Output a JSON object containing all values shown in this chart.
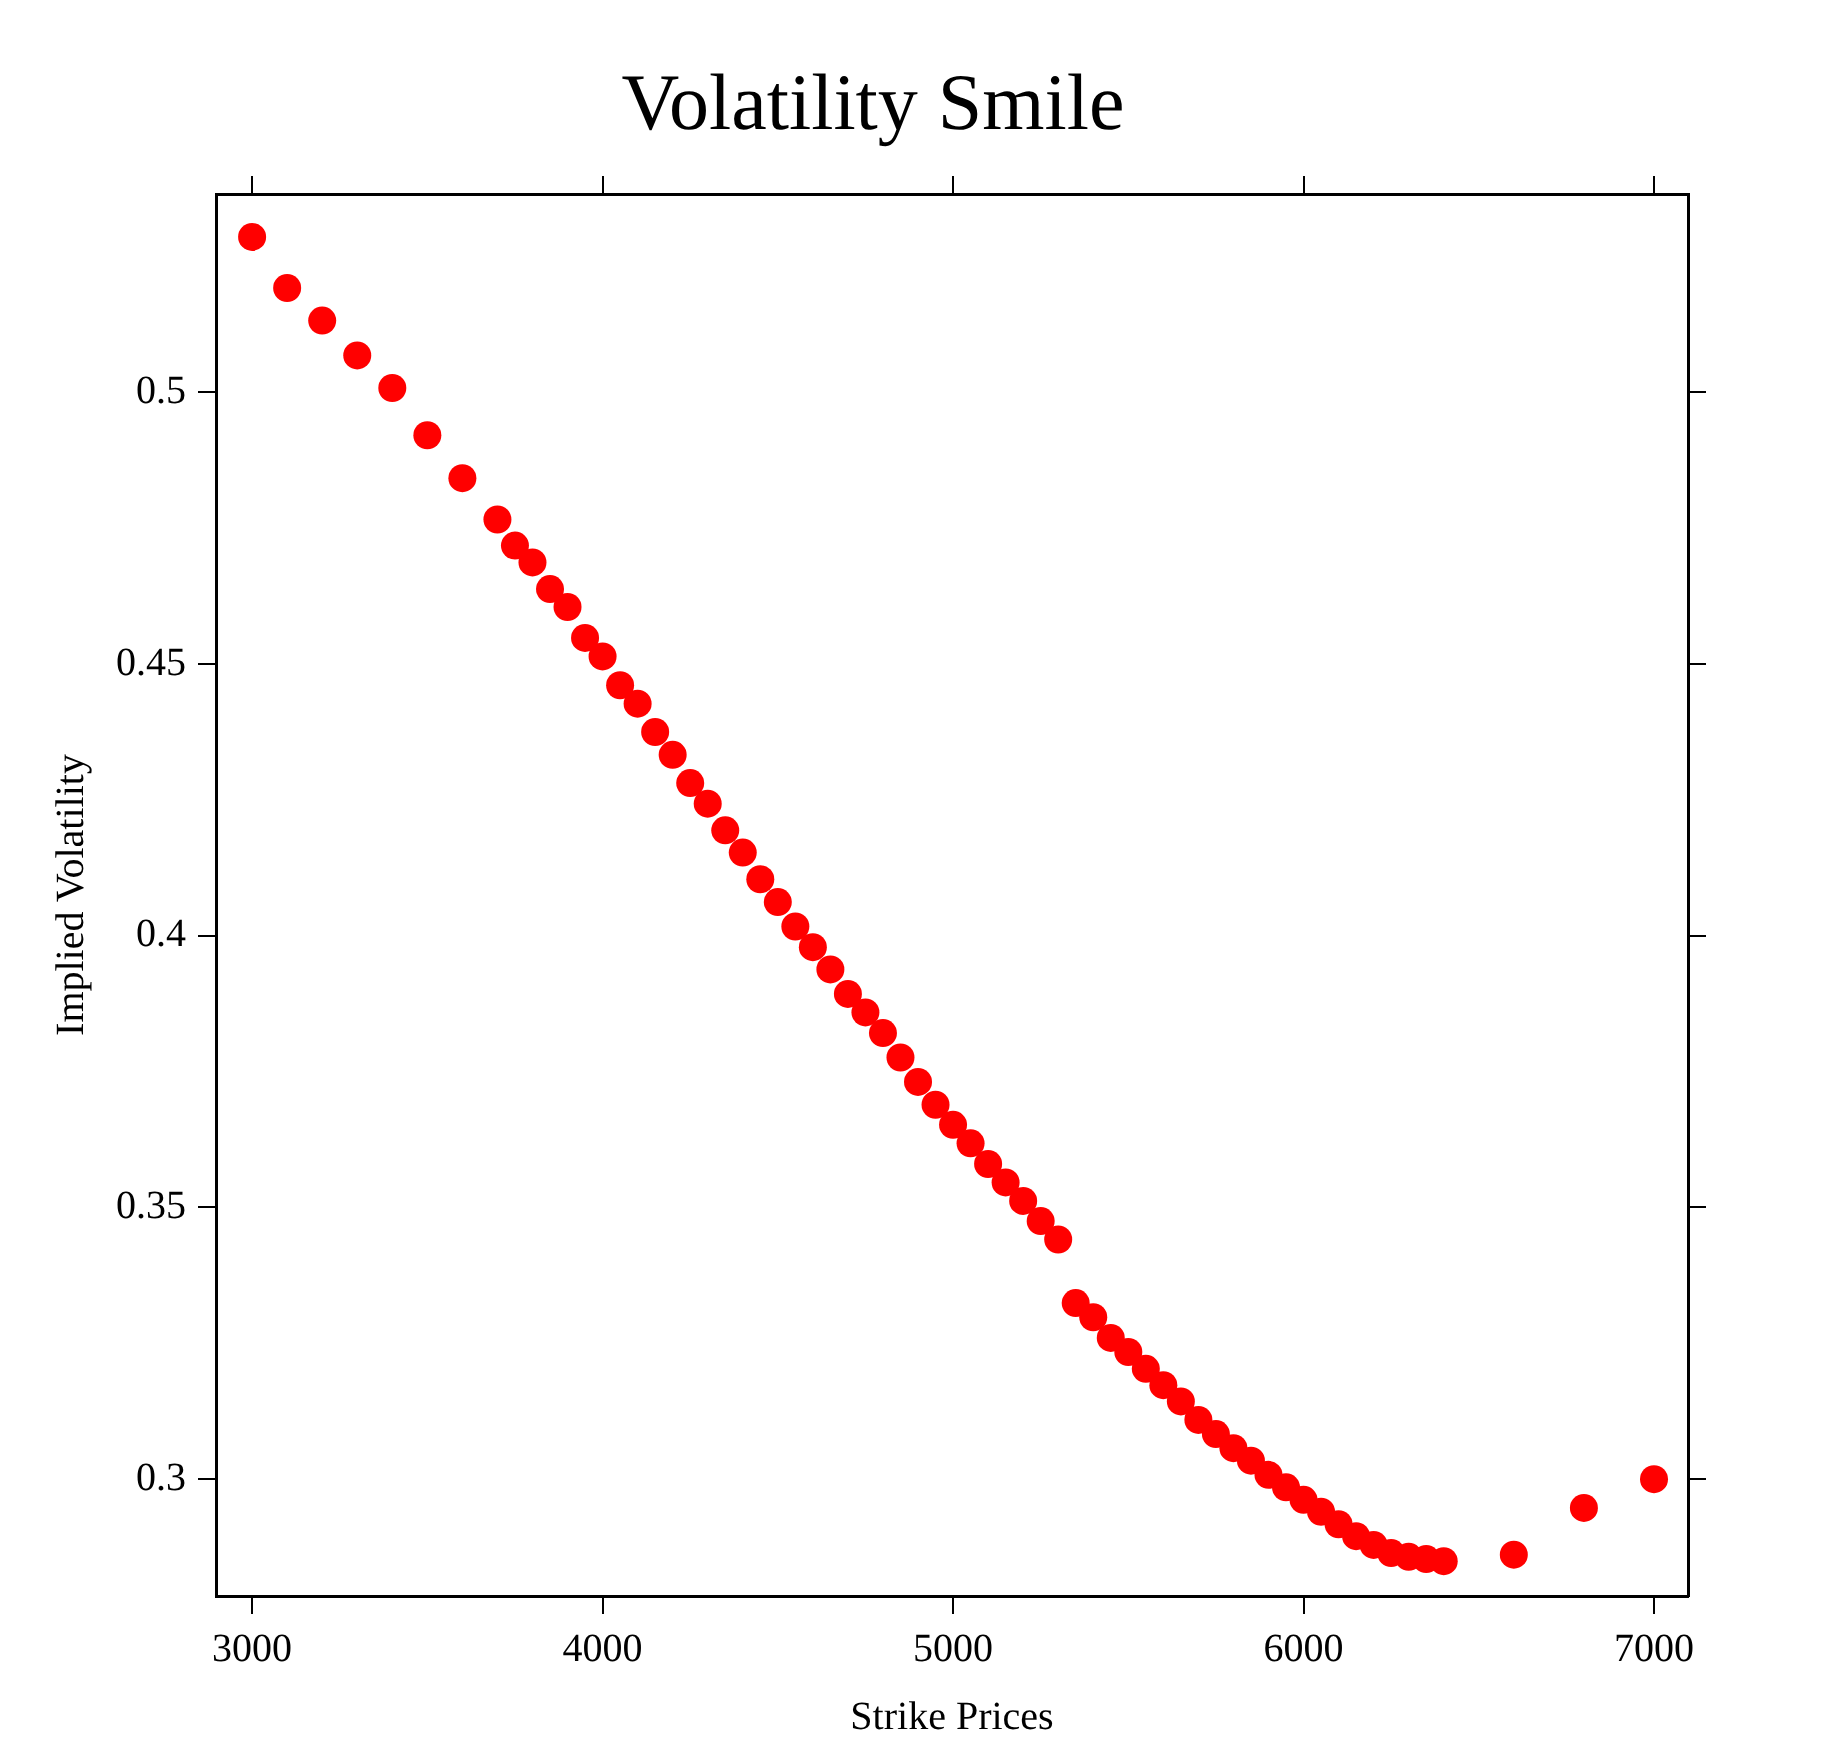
{
  "chart_data": {
    "type": "scatter",
    "title": "Volatility Smile",
    "xlabel": "Strike Prices",
    "ylabel": "Implied Volatility",
    "x": [
      3000,
      3100,
      3200,
      3300,
      3400,
      3500,
      3600,
      3700,
      3750,
      3800,
      3850,
      3900,
      3950,
      4000,
      4050,
      4100,
      4150,
      4200,
      4250,
      4300,
      4350,
      4400,
      4450,
      4500,
      4550,
      4600,
      4650,
      4700,
      4750,
      4800,
      4850,
      4900,
      4950,
      5000,
      5050,
      5100,
      5150,
      5200,
      5250,
      5300,
      5350,
      5400,
      5450,
      5500,
      5550,
      5600,
      5650,
      5700,
      5750,
      5800,
      5850,
      5900,
      5950,
      6000,
      6050,
      6100,
      6150,
      6200,
      6250,
      6300,
      6350,
      6400,
      6600,
      6800,
      7000
    ],
    "series": [
      {
        "color": "#ff0000",
        "values": [
          0.5286,
          0.5192,
          0.5132,
          0.5068,
          0.5008,
          0.4921,
          0.4842,
          0.4766,
          0.4718,
          0.4687,
          0.4638,
          0.4605,
          0.4548,
          0.4514,
          0.4461,
          0.4427,
          0.4375,
          0.4333,
          0.4281,
          0.4243,
          0.4194,
          0.4153,
          0.4104,
          0.4062,
          0.4017,
          0.3979,
          0.3938,
          0.3893,
          0.3859,
          0.3821,
          0.3776,
          0.3731,
          0.3689,
          0.3652,
          0.3618,
          0.358,
          0.3546,
          0.3512,
          0.3475,
          0.3441,
          0.3324,
          0.3298,
          0.326,
          0.3234,
          0.3203,
          0.3173,
          0.3143,
          0.3109,
          0.3083,
          0.3057,
          0.3034,
          0.3008,
          0.2985,
          0.2962,
          0.294,
          0.2917,
          0.2895,
          0.2879,
          0.2864,
          0.2857,
          0.2853,
          0.2849,
          0.2861,
          0.2947,
          0.3
        ]
      }
    ],
    "xlim": [
      2897,
      7097
    ],
    "ylim": [
      0.2785,
      0.5365
    ],
    "xticks": [
      3000,
      4000,
      5000,
      6000,
      7000
    ],
    "yticks": [
      0.3,
      0.35,
      0.4,
      0.45,
      0.5
    ],
    "grid": false,
    "legend": false,
    "marker": "circle"
  }
}
